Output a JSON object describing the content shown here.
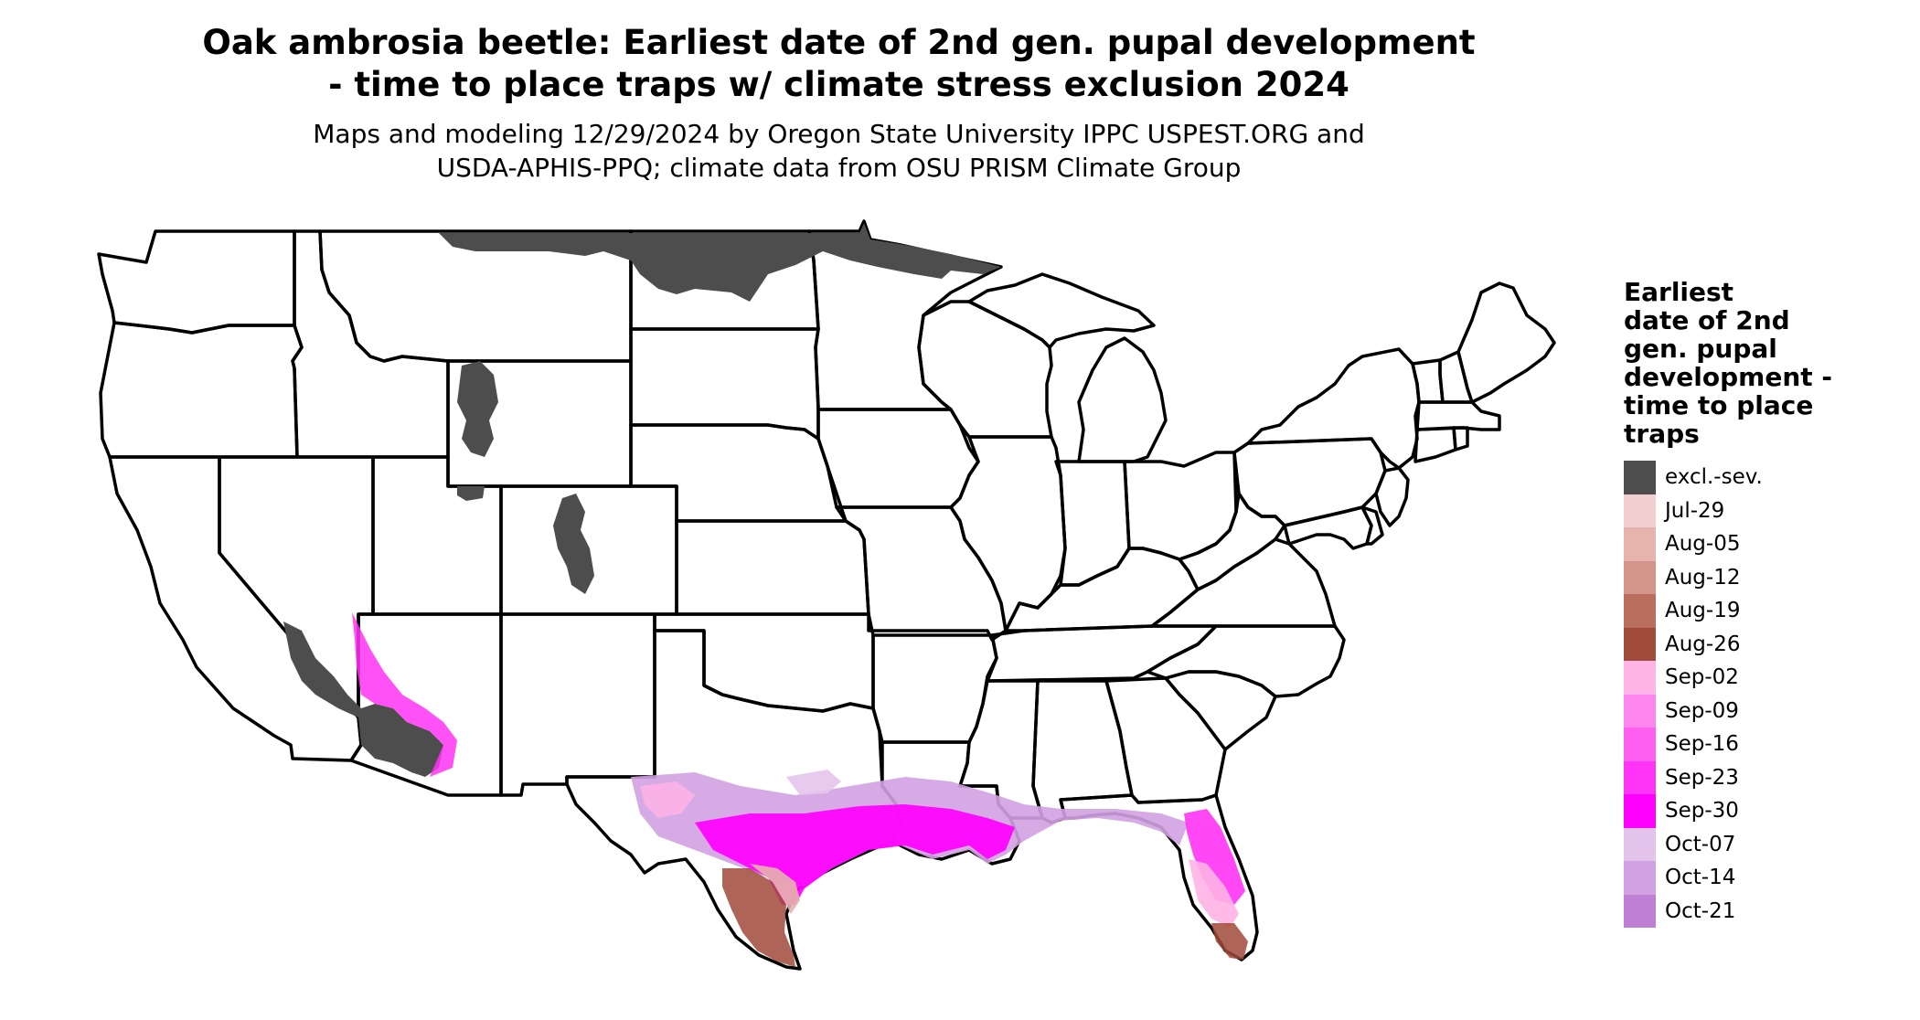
{
  "title": "Oak ambrosia beetle: Earliest date of 2nd gen. pupal development\n- time to place traps w/ climate stress exclusion 2024",
  "subtitle": "Maps and modeling 12/29/2024 by Oregon State University IPPC USPEST.ORG and\nUSDA-APHIS-PPQ; climate data from OSU PRISM Climate Group",
  "legend": {
    "title": "Earliest\ndate of 2nd\ngen. pupal\ndevelopment -\ntime to place\ntraps",
    "items": [
      {
        "label": "excl.-sev.",
        "color": "#4d4d4d"
      },
      {
        "label": "Jul-29",
        "color": "#f2cfd1"
      },
      {
        "label": "Aug-05",
        "color": "#e6b3ad"
      },
      {
        "label": "Aug-12",
        "color": "#d4968b"
      },
      {
        "label": "Aug-19",
        "color": "#b96e5e"
      },
      {
        "label": "Aug-26",
        "color": "#a04a3a"
      },
      {
        "label": "Sep-02",
        "color": "#ffb3e6"
      },
      {
        "label": "Sep-09",
        "color": "#ff85ee"
      },
      {
        "label": "Sep-16",
        "color": "#ff5ff0"
      },
      {
        "label": "Sep-23",
        "color": "#ff33f5"
      },
      {
        "label": "Sep-30",
        "color": "#ff00ff"
      },
      {
        "label": "Oct-07",
        "color": "#e4c4ec"
      },
      {
        "label": "Oct-14",
        "color": "#d2a2e2"
      },
      {
        "label": "Oct-21",
        "color": "#bf7fd4"
      }
    ]
  }
}
